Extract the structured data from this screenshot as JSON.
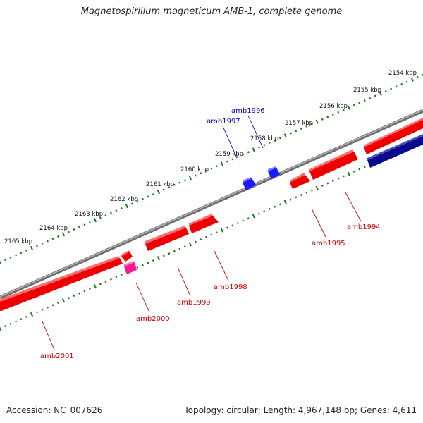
{
  "title": "Magnetospirillum magneticum AMB-1, complete genome",
  "footer": {
    "accession": "Accession: NC_007626",
    "summary": "Topology: circular; Length: 4,967,148 bp; Genes: 4,611"
  },
  "colors": {
    "backbone": "#8a8a8a",
    "ruler": "#1e7a1e",
    "gene_forward": "#ff1a1a",
    "gene_reverse_dark": "#0a0a8c",
    "gene_small": "#1a1aff",
    "gene_pink": "#ff1a8c",
    "label_red": "#cc0000",
    "label_blue": "#0000cc"
  },
  "ruler": {
    "ticks": [
      {
        "label": "2154 kbp"
      },
      {
        "label": "2155 kbp"
      },
      {
        "label": "2156 kbp"
      },
      {
        "label": "2157 kbp"
      },
      {
        "label": "2158 kbp"
      },
      {
        "label": "2159 kbp"
      },
      {
        "label": "2160 kbp"
      },
      {
        "label": "2161 kbp"
      },
      {
        "label": "2162 kbp"
      },
      {
        "label": "2163 kbp"
      },
      {
        "label": "2164 kbp"
      },
      {
        "label": "2165 kbp"
      }
    ]
  },
  "genes": [
    {
      "name": "amb1994",
      "color": "gene_forward"
    },
    {
      "name": "amb1995",
      "color": "gene_forward"
    },
    {
      "name": "amb1996",
      "color": "gene_small"
    },
    {
      "name": "amb1997",
      "color": "gene_small"
    },
    {
      "name": "amb1998",
      "color": "gene_forward"
    },
    {
      "name": "amb1999",
      "color": "gene_forward"
    },
    {
      "name": "amb2000",
      "color": "gene_pink"
    },
    {
      "name": "amb2001",
      "color": "gene_forward"
    }
  ]
}
